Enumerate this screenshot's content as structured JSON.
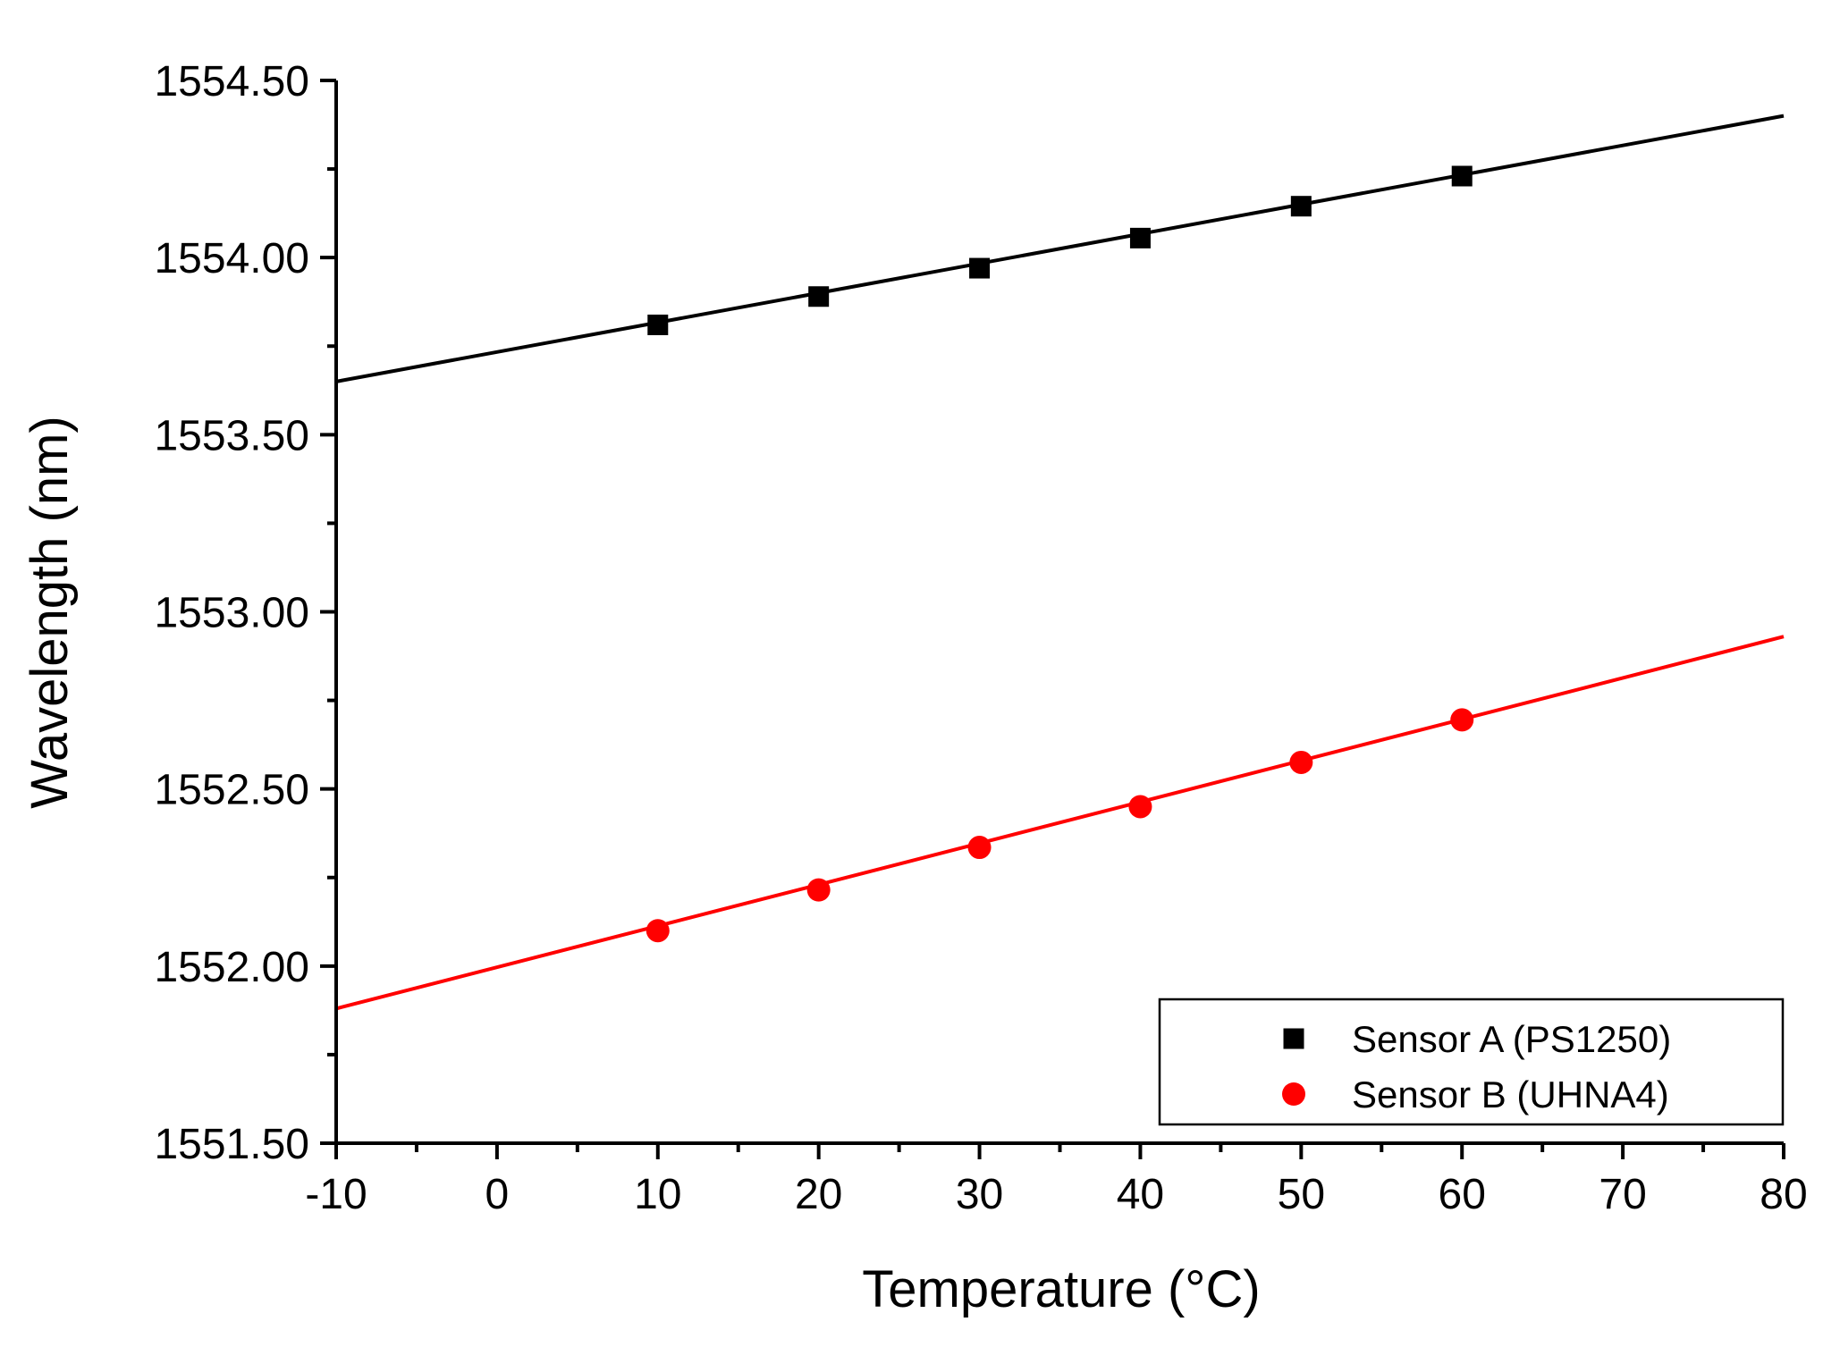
{
  "chart_data": {
    "type": "scatter",
    "title": "",
    "xlabel": "Temperature (°C)",
    "ylabel": "Wavelength (nm)",
    "xlim": [
      -10,
      80
    ],
    "ylim": [
      1551.5,
      1554.5
    ],
    "xticks": [
      -10,
      0,
      10,
      20,
      30,
      40,
      50,
      60,
      70,
      80
    ],
    "xtick_labels": [
      "-10",
      "0",
      "10",
      "20",
      "30",
      "40",
      "50",
      "60",
      "70",
      "80"
    ],
    "yticks": [
      1551.5,
      1552.0,
      1552.5,
      1553.0,
      1553.5,
      1554.0,
      1554.5
    ],
    "ytick_labels": [
      "1551.50",
      "1552.00",
      "1552.50",
      "1553.00",
      "1553.50",
      "1554.00",
      "1554.50"
    ],
    "grid": false,
    "legend_position": "bottom-right",
    "series": [
      {
        "name": "Sensor A (PS1250)",
        "color": "#000000",
        "marker": "square",
        "x": [
          10,
          20,
          30,
          40,
          50,
          60
        ],
        "y": [
          1553.81,
          1553.89,
          1553.97,
          1554.055,
          1554.145,
          1554.23
        ],
        "fit": {
          "x": [
            -10,
            80
          ],
          "y": [
            1553.65,
            1554.4
          ]
        }
      },
      {
        "name": "Sensor B (UHNA4)",
        "color": "#ff0000",
        "marker": "circle",
        "x": [
          10,
          20,
          30,
          40,
          50,
          60
        ],
        "y": [
          1552.1,
          1552.215,
          1552.335,
          1552.45,
          1552.575,
          1552.695
        ],
        "fit": {
          "x": [
            -10,
            80
          ],
          "y": [
            1551.88,
            1552.93
          ]
        }
      }
    ]
  }
}
